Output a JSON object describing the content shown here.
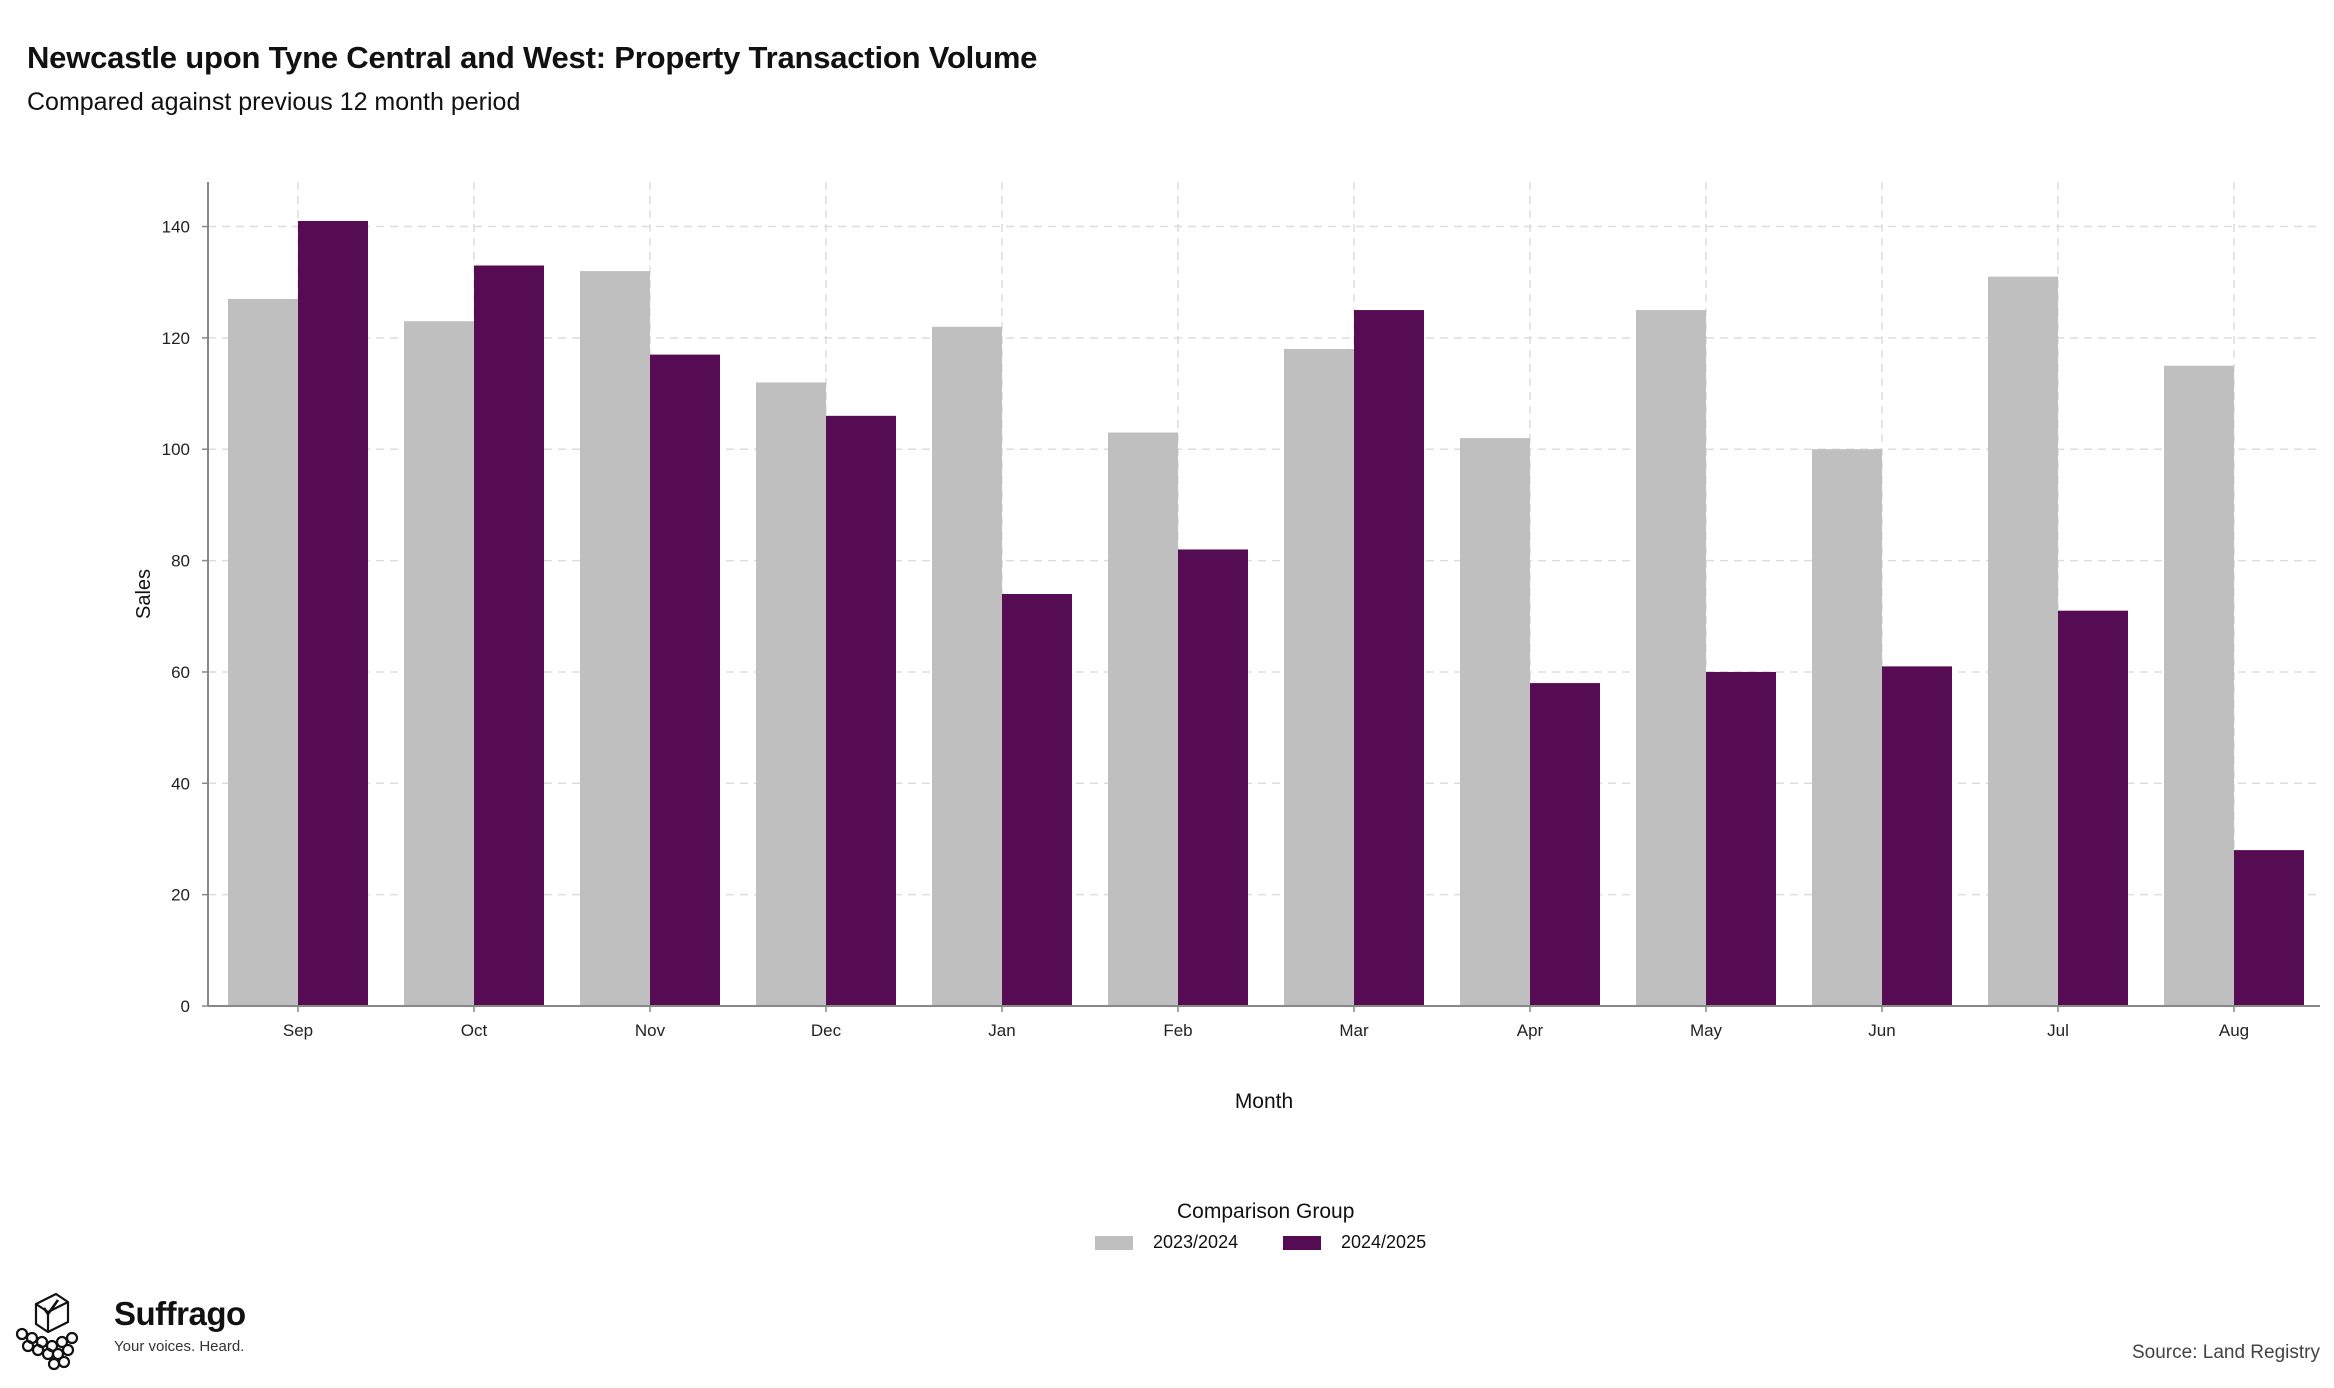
{
  "header": {
    "title": "Newcastle upon Tyne Central and West: Property Transaction Volume",
    "subtitle": "Compared against previous 12 month period"
  },
  "legend": {
    "title": "Comparison Group"
  },
  "footer": {
    "logo_name": "Suffrago",
    "logo_tagline": "Your voices. Heard.",
    "source": "Source: Land Registry"
  },
  "colors": {
    "series_2023_2024": "#bfbfbf",
    "series_2024_2025": "#560c52",
    "grid": "#dddddd",
    "axis": "#888888"
  },
  "chart_data": {
    "type": "bar",
    "title": "Newcastle upon Tyne Central and West: Property Transaction Volume",
    "subtitle": "Compared against previous 12 month period",
    "xlabel": "Month",
    "ylabel": "Sales",
    "ylim": [
      0,
      148
    ],
    "yticks": [
      0,
      20,
      40,
      60,
      80,
      100,
      120,
      140
    ],
    "categories": [
      "Sep",
      "Oct",
      "Nov",
      "Dec",
      "Jan",
      "Feb",
      "Mar",
      "Apr",
      "May",
      "Jun",
      "Jul",
      "Aug"
    ],
    "series": [
      {
        "name": "2023/2024",
        "color": "#bfbfbf",
        "values": [
          127,
          123,
          132,
          112,
          122,
          103,
          118,
          102,
          125,
          100,
          131,
          115
        ]
      },
      {
        "name": "2024/2025",
        "color": "#560c52",
        "values": [
          141,
          133,
          117,
          106,
          74,
          82,
          125,
          58,
          60,
          61,
          71,
          28
        ]
      }
    ],
    "grid": true,
    "grid_style": "dashed",
    "legend_position": "bottom"
  }
}
